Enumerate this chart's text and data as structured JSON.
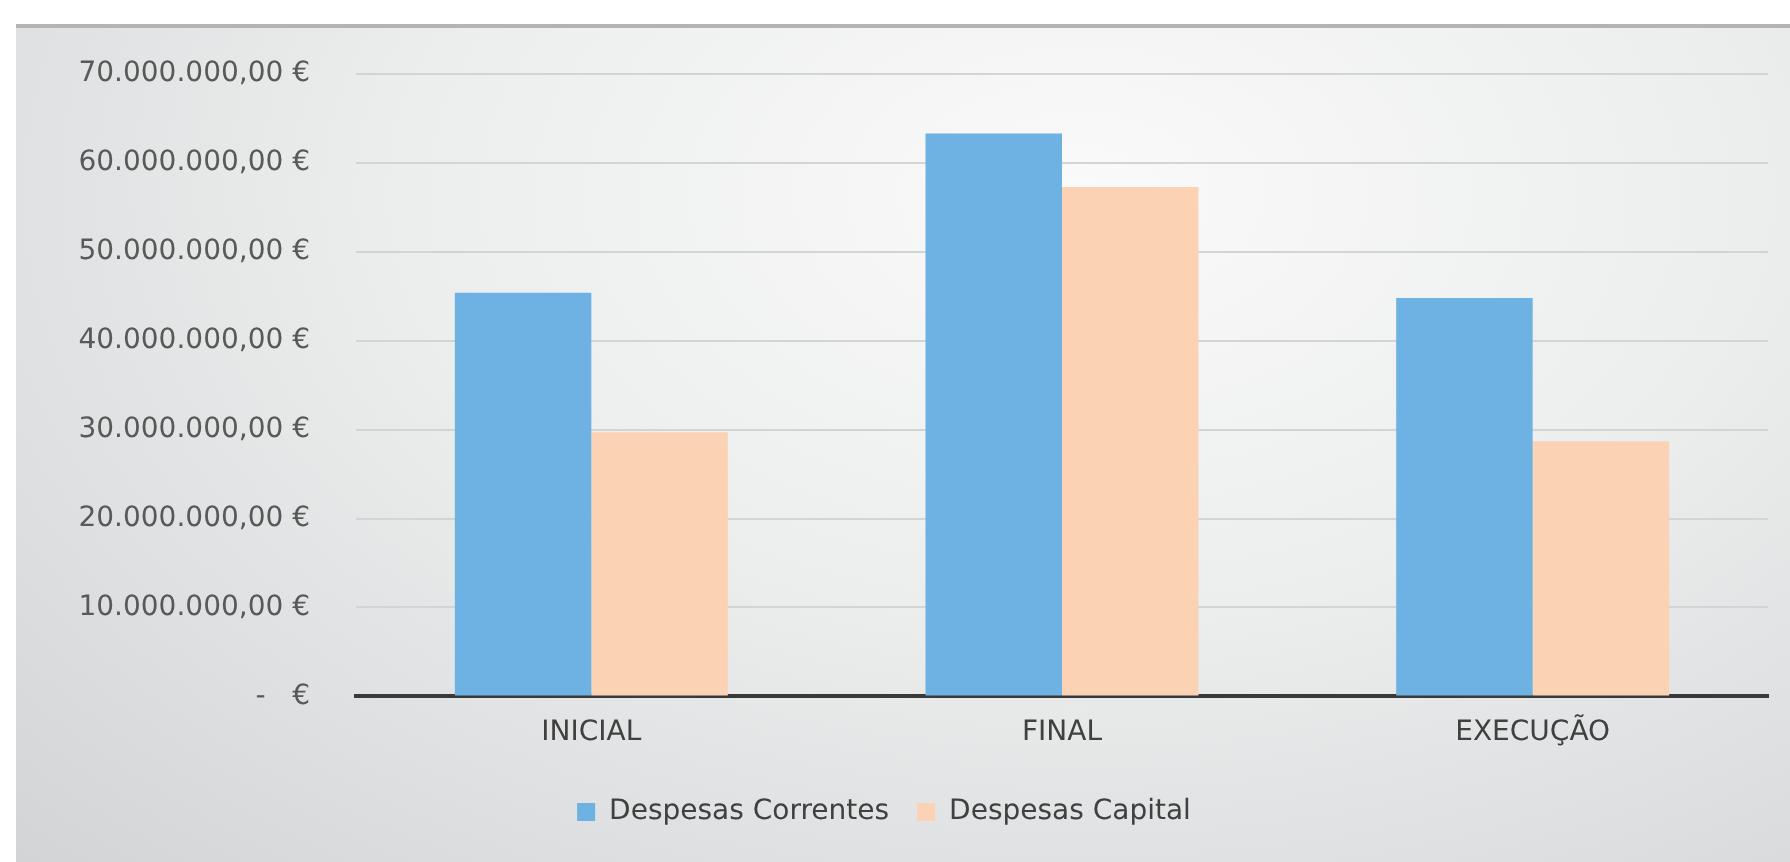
{
  "chart_data": {
    "type": "bar",
    "categories": [
      "INICIAL",
      "FINAL",
      "EXECUÇÃO"
    ],
    "series": [
      {
        "name": "Despesas Correntes",
        "color": "#6db2e2",
        "values": [
          45400000,
          63300000,
          44800000
        ]
      },
      {
        "name": "Despesas Capital",
        "color": "#fcd2b4",
        "values": [
          29700000,
          57300000,
          28700000
        ]
      }
    ],
    "ylim": [
      0,
      70000000
    ],
    "yticks": [
      {
        "value": 0,
        "label": "-   €"
      },
      {
        "value": 10000000,
        "label": "10.000.000,00 €"
      },
      {
        "value": 20000000,
        "label": "20.000.000,00 €"
      },
      {
        "value": 30000000,
        "label": "30.000.000,00 €"
      },
      {
        "value": 40000000,
        "label": "40.000.000,00 €"
      },
      {
        "value": 50000000,
        "label": "50.000.000,00 €"
      },
      {
        "value": 60000000,
        "label": "60.000.000,00 €"
      },
      {
        "value": 70000000,
        "label": "70.000.000,00 €"
      }
    ],
    "grid": "y",
    "legend": "bottom"
  }
}
